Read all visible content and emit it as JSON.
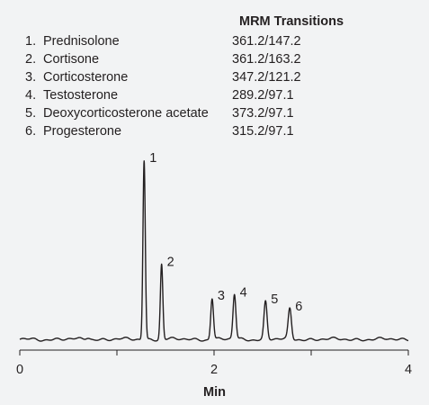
{
  "chart_data": {
    "type": "line",
    "legend": {
      "header": "MRM Transitions",
      "entries": [
        {
          "num": "1.",
          "name": "Prednisolone",
          "mrm": "361.2/147.2"
        },
        {
          "num": "2.",
          "name": "Cortisone",
          "mrm": "361.2/163.2"
        },
        {
          "num": "3.",
          "name": "Corticosterone",
          "mrm": "347.2/121.2"
        },
        {
          "num": "4.",
          "name": "Testosterone",
          "mrm": "289.2/97.1"
        },
        {
          "num": "5.",
          "name": "Deoxycorticosterone acetate",
          "mrm": "373.2/97.1"
        },
        {
          "num": "6.",
          "name": "Progesterone",
          "mrm": "315.2/97.1"
        }
      ]
    },
    "xlabel": "Min",
    "ylabel": "",
    "xlim": [
      0,
      4
    ],
    "x_ticks": [
      0,
      1,
      2,
      3,
      4
    ],
    "x_tick_labels": [
      "0",
      "",
      "2",
      "",
      "4"
    ],
    "peaks": [
      {
        "label": "1",
        "rt": 1.28,
        "height": 1.0
      },
      {
        "label": "2",
        "rt": 1.46,
        "height": 0.42
      },
      {
        "label": "3",
        "rt": 1.98,
        "height": 0.23
      },
      {
        "label": "4",
        "rt": 2.21,
        "height": 0.25
      },
      {
        "label": "5",
        "rt": 2.53,
        "height": 0.21
      },
      {
        "label": "6",
        "rt": 2.78,
        "height": 0.17
      }
    ],
    "colors": {
      "trace": "#231f20",
      "axis": "#231f20",
      "background": "#f2f3f4"
    },
    "grid": false
  }
}
